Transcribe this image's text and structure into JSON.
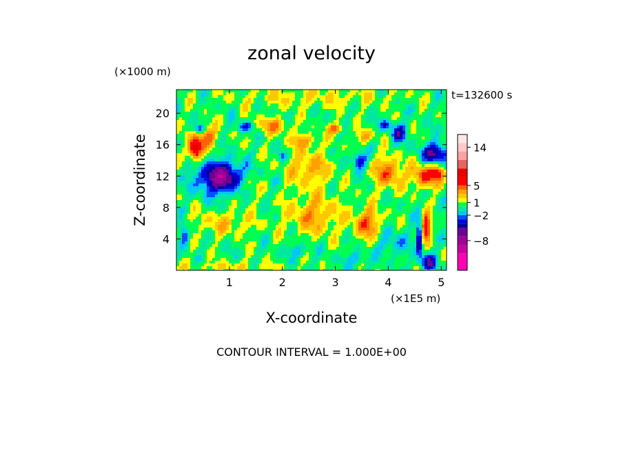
{
  "chart_data": {
    "type": "heatmap",
    "title": "zonal velocity",
    "ylabel": "Z-coordinate",
    "xlabel": "X-coordinate",
    "y_scale_note": "(×1000 m)",
    "x_scale_note": "(×1E5 m)",
    "time_label": "t=132600 s",
    "footer": "CONTOUR INTERVAL = 1.000E+00",
    "xlim": [
      0,
      5.1
    ],
    "ylim": [
      0,
      23
    ],
    "x_ticks": [
      1,
      2,
      3,
      4,
      5
    ],
    "y_ticks": [
      4,
      8,
      12,
      16,
      20
    ],
    "colorbar": {
      "labeled_ticks": [
        {
          "label": "14",
          "value": 14
        },
        {
          "label": "5",
          "value": 5
        },
        {
          "label": "1",
          "value": 1
        },
        {
          "label": "−2",
          "value": -2
        },
        {
          "label": "−8",
          "value": -8
        }
      ],
      "levels": [
        {
          "lo": -15,
          "hi": -11,
          "color": "#ff00b4"
        },
        {
          "lo": -11,
          "hi": -9,
          "color": "#c800a0"
        },
        {
          "lo": -9,
          "hi": -7,
          "color": "#a00096"
        },
        {
          "lo": -7,
          "hi": -5,
          "color": "#6e0096"
        },
        {
          "lo": -5,
          "hi": -4,
          "color": "#0000a0"
        },
        {
          "lo": -4,
          "hi": -3,
          "color": "#0000e0"
        },
        {
          "lo": -3,
          "hi": -2,
          "color": "#0050ff"
        },
        {
          "lo": -2,
          "hi": -1,
          "color": "#00c8ff"
        },
        {
          "lo": -1,
          "hi": 0,
          "color": "#00e8a0"
        },
        {
          "lo": 0,
          "hi": 1,
          "color": "#00ff50"
        },
        {
          "lo": 1,
          "hi": 2,
          "color": "#ffff00"
        },
        {
          "lo": 2,
          "hi": 3,
          "color": "#ffc800"
        },
        {
          "lo": 3,
          "hi": 4,
          "color": "#ffa000"
        },
        {
          "lo": 4,
          "hi": 5,
          "color": "#ff6400"
        },
        {
          "lo": 5,
          "hi": 7,
          "color": "#ff0000"
        },
        {
          "lo": 7,
          "hi": 9,
          "color": "#e60000"
        },
        {
          "lo": 9,
          "hi": 11,
          "color": "#e66464"
        },
        {
          "lo": 11,
          "hi": 13,
          "color": "#ffa0a0"
        },
        {
          "lo": 13,
          "hi": 15,
          "color": "#ffc8c8"
        },
        {
          "lo": 15,
          "hi": 17,
          "color": "#ffe6e6"
        }
      ]
    },
    "field_features": [
      {
        "x": 0.35,
        "z": 15.4,
        "sx": 0.12,
        "sz": 1.3,
        "amp": 8
      },
      {
        "x": 0.55,
        "z": 17.0,
        "sx": 0.22,
        "sz": 1.4,
        "amp": 4
      },
      {
        "x": 0.85,
        "z": 11.8,
        "sx": 0.42,
        "sz": 1.9,
        "amp": -8
      },
      {
        "x": 0.42,
        "z": 18.0,
        "sx": 0.1,
        "sz": 0.6,
        "amp": -4
      },
      {
        "x": 1.3,
        "z": 18.3,
        "sx": 0.15,
        "sz": 0.6,
        "amp": -4
      },
      {
        "x": 1.3,
        "z": 11.0,
        "sx": 0.25,
        "sz": 1.6,
        "amp": 2
      },
      {
        "x": 0.15,
        "z": 4.5,
        "sx": 0.08,
        "sz": 1.3,
        "amp": -4
      },
      {
        "x": 0.9,
        "z": 6.0,
        "sx": 0.6,
        "sz": 1.5,
        "amp": 2
      },
      {
        "x": 1.8,
        "z": 18.4,
        "sx": 0.35,
        "sz": 1.0,
        "amp": 3
      },
      {
        "x": 2.0,
        "z": 14.5,
        "sx": 0.06,
        "sz": 0.6,
        "amp": -3
      },
      {
        "x": 2.5,
        "z": 13.0,
        "sx": 0.4,
        "sz": 2.2,
        "amp": 3
      },
      {
        "x": 2.4,
        "z": 16.5,
        "sx": 0.25,
        "sz": 0.9,
        "amp": 3
      },
      {
        "x": 3.0,
        "z": 18.0,
        "sx": 0.15,
        "sz": 0.7,
        "amp": 4
      },
      {
        "x": 2.6,
        "z": 7.0,
        "sx": 0.5,
        "sz": 2.5,
        "amp": 3
      },
      {
        "x": 2.3,
        "z": 2.5,
        "sx": 0.2,
        "sz": 0.8,
        "amp": -2
      },
      {
        "x": 3.45,
        "z": 14.0,
        "sx": 0.12,
        "sz": 1.0,
        "amp": -5
      },
      {
        "x": 3.55,
        "z": 17.0,
        "sx": 0.15,
        "sz": 0.8,
        "amp": 3
      },
      {
        "x": 3.6,
        "z": 6.0,
        "sx": 0.25,
        "sz": 2.0,
        "amp": 4
      },
      {
        "x": 3.4,
        "z": 1.5,
        "sx": 0.2,
        "sz": 1.0,
        "amp": -2
      },
      {
        "x": 4.0,
        "z": 12.5,
        "sx": 0.28,
        "sz": 2.0,
        "amp": 4
      },
      {
        "x": 3.95,
        "z": 18.5,
        "sx": 0.1,
        "sz": 0.5,
        "amp": -4
      },
      {
        "x": 4.2,
        "z": 17.5,
        "sx": 0.15,
        "sz": 1.2,
        "amp": -4
      },
      {
        "x": 4.1,
        "z": 3.5,
        "sx": 0.3,
        "sz": 1.5,
        "amp": -2
      },
      {
        "x": 4.7,
        "z": 12.0,
        "sx": 0.25,
        "sz": 1.5,
        "amp": 5
      },
      {
        "x": 4.9,
        "z": 14.8,
        "sx": 0.25,
        "sz": 1.3,
        "amp": -6
      },
      {
        "x": 4.95,
        "z": 12.5,
        "sx": 0.12,
        "sz": 1.0,
        "amp": 4
      },
      {
        "x": 4.72,
        "z": 5.5,
        "sx": 0.08,
        "sz": 1.6,
        "amp": 7
      },
      {
        "x": 4.58,
        "z": 4.0,
        "sx": 0.05,
        "sz": 2.2,
        "amp": -6
      },
      {
        "x": 4.75,
        "z": 1.0,
        "sx": 0.15,
        "sz": 1.0,
        "amp": -5
      },
      {
        "x": 2.5,
        "z": 22.0,
        "sx": 1.5,
        "sz": 1.2,
        "amp": 1.5
      },
      {
        "x": 1.0,
        "z": 0.5,
        "sx": 0.8,
        "sz": 0.6,
        "amp": 1.5
      }
    ]
  }
}
